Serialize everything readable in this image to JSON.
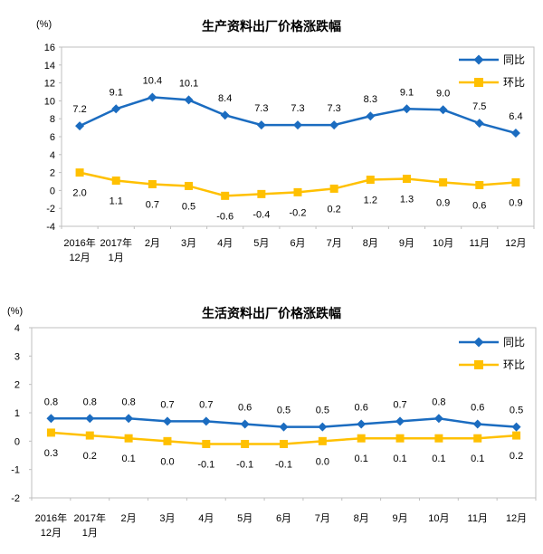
{
  "styles": {
    "axis_color": "#bfbfbf",
    "text_color": "#000000",
    "tongbi_blue": "#1b6cc0",
    "huanbi_gold": "#ffc000"
  },
  "chart_data": [
    {
      "type": "line",
      "title": "生产资料出厂价格涨跌幅",
      "unit_label": "(%)",
      "grid": false,
      "legend_position": "top-right-inside",
      "categories": [
        [
          "2016年",
          "12月"
        ],
        [
          "2017年",
          "1月"
        ],
        [
          "2月"
        ],
        [
          "3月"
        ],
        [
          "4月"
        ],
        [
          "5月"
        ],
        [
          "6月"
        ],
        [
          "7月"
        ],
        [
          "8月"
        ],
        [
          "9月"
        ],
        [
          "10月"
        ],
        [
          "11月"
        ],
        [
          "12月"
        ]
      ],
      "ylim": [
        -4,
        16
      ],
      "ytick_step": 2,
      "series": [
        {
          "name": "同比",
          "color": "#1b6cc0",
          "marker": "diamond",
          "label_position": "above",
          "values": [
            7.2,
            9.1,
            10.4,
            10.1,
            8.4,
            7.3,
            7.3,
            7.3,
            8.3,
            9.1,
            9.0,
            7.5,
            6.4
          ]
        },
        {
          "name": "环比",
          "color": "#ffc000",
          "marker": "square",
          "label_position": "below",
          "values": [
            2.0,
            1.1,
            0.7,
            0.5,
            -0.6,
            -0.4,
            -0.2,
            0.2,
            1.2,
            1.3,
            0.9,
            0.6,
            0.9
          ]
        }
      ]
    },
    {
      "type": "line",
      "title": "生活资料出厂价格涨跌幅",
      "unit_label": "(%)",
      "grid": false,
      "legend_position": "top-right-inside",
      "categories": [
        [
          "2016年",
          "12月"
        ],
        [
          "2017年",
          "1月"
        ],
        [
          "2月"
        ],
        [
          "3月"
        ],
        [
          "4月"
        ],
        [
          "5月"
        ],
        [
          "6月"
        ],
        [
          "7月"
        ],
        [
          "8月"
        ],
        [
          "9月"
        ],
        [
          "10月"
        ],
        [
          "11月"
        ],
        [
          "12月"
        ]
      ],
      "ylim": [
        -2,
        4
      ],
      "ytick_step": 1,
      "series": [
        {
          "name": "同比",
          "color": "#1b6cc0",
          "marker": "diamond",
          "label_position": "above",
          "values": [
            0.8,
            0.8,
            0.8,
            0.7,
            0.7,
            0.6,
            0.5,
            0.5,
            0.6,
            0.7,
            0.8,
            0.6,
            0.5
          ]
        },
        {
          "name": "环比",
          "color": "#ffc000",
          "marker": "square",
          "label_position": "below",
          "values": [
            0.3,
            0.2,
            0.1,
            0.0,
            -0.1,
            -0.1,
            -0.1,
            0.0,
            0.1,
            0.1,
            0.1,
            0.1,
            0.2
          ]
        }
      ]
    }
  ]
}
